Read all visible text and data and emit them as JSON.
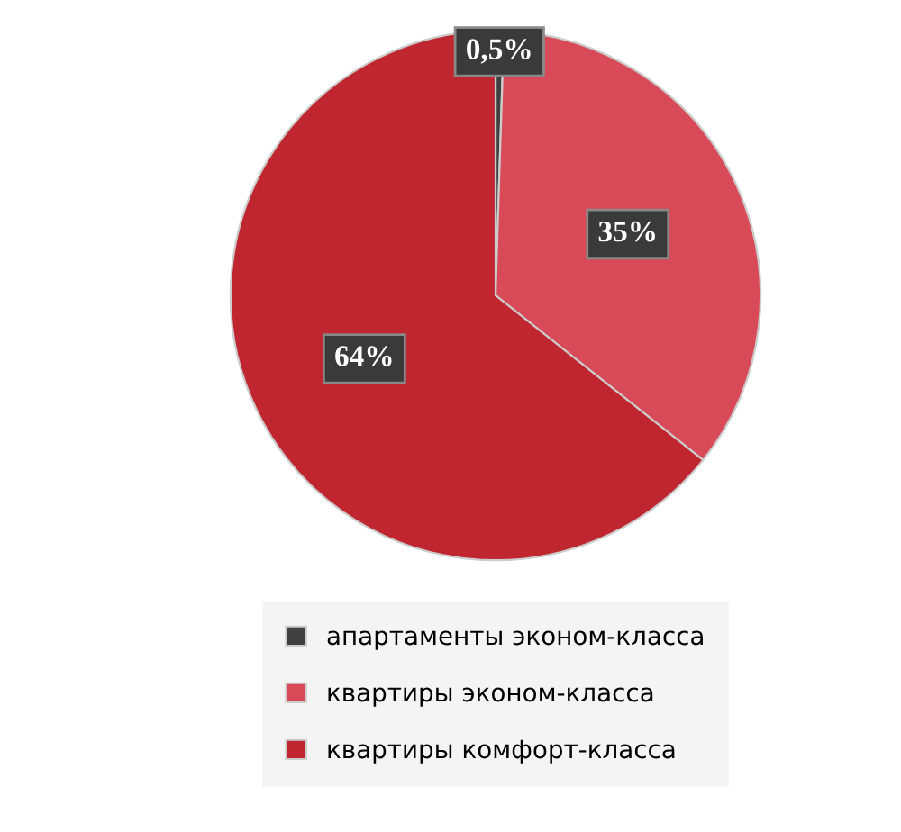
{
  "chart_data": {
    "type": "pie",
    "categories": [
      "апартаменты эконом-класса",
      "квартиры эконом-класса",
      "квартиры комфорт-класса"
    ],
    "values": [
      0.5,
      35,
      64
    ],
    "colors": [
      "#404040",
      "#d84a57",
      "#c0262f"
    ],
    "value_labels": [
      "0,5%",
      "35%",
      "64%"
    ],
    "legend": "bottom"
  }
}
